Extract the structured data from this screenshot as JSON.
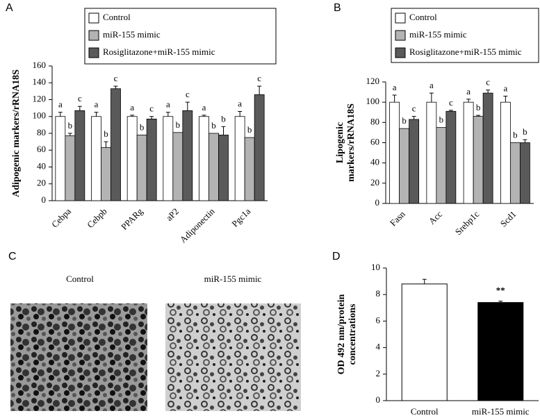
{
  "chart_data": [
    {
      "type": "grouped_bar",
      "panel": "A",
      "ylabel": [
        "Adipogenic markers/rRNA18S"
      ],
      "categories": [
        "Cebpa",
        "Cebpb",
        "PPARg",
        "aP2",
        "Adiponectin",
        "Pgc1a"
      ],
      "series": [
        {
          "name": "Control",
          "color": "#ffffff",
          "values": [
            100,
            100,
            100,
            100,
            100,
            100
          ],
          "errors": [
            5,
            5,
            1.5,
            5,
            1.5,
            6
          ],
          "letters": [
            "a",
            "a",
            "a",
            "a",
            "a",
            "a"
          ]
        },
        {
          "name": "miR-155 mimic",
          "color": "#b3b3b3",
          "values": [
            77,
            63,
            78,
            81,
            80,
            75
          ],
          "errors": [
            3,
            7,
            null,
            null,
            null,
            null
          ],
          "letters": [
            "b",
            "b",
            "b",
            "b",
            "b",
            "b"
          ]
        },
        {
          "name": "Rosiglitazone+miR-155 mimic",
          "color": "#5a5a5a",
          "values": [
            107,
            133,
            97,
            107,
            78,
            126
          ],
          "errors": [
            5,
            3,
            3,
            10,
            10,
            10
          ],
          "letters": [
            "c",
            "c",
            "c",
            "c",
            "b",
            "c"
          ]
        }
      ],
      "ylim": [
        0,
        160
      ],
      "yticks": [
        0,
        20,
        40,
        60,
        80,
        100,
        120,
        140,
        160
      ],
      "legend": true
    },
    {
      "type": "grouped_bar",
      "panel": "B",
      "ylabel": [
        "Lipogenic",
        "markers/rRNA18S"
      ],
      "categories": [
        "Fasn",
        "Acc",
        "Srebp1c",
        "Scd1"
      ],
      "series": [
        {
          "name": "Control",
          "color": "#ffffff",
          "values": [
            100,
            100,
            100,
            100
          ],
          "errors": [
            7,
            9,
            3,
            6
          ],
          "letters": [
            "a",
            "a",
            "a",
            "a"
          ]
        },
        {
          "name": "miR-155 mimic",
          "color": "#b3b3b3",
          "values": [
            74,
            75,
            86,
            60
          ],
          "errors": [
            null,
            null,
            1,
            null
          ],
          "letters": [
            "b",
            "b",
            "b",
            "b"
          ]
        },
        {
          "name": "Rosiglitazone+miR-155 mimic",
          "color": "#5a5a5a",
          "values": [
            83,
            91,
            109,
            60
          ],
          "errors": [
            3,
            1,
            3,
            3
          ],
          "letters": [
            "c",
            "c",
            "c",
            "b"
          ]
        }
      ],
      "ylim": [
        0,
        120
      ],
      "yticks": [
        0,
        20,
        40,
        60,
        80,
        100,
        120
      ],
      "legend": true
    },
    {
      "type": "bar",
      "panel": "D",
      "ylabel": [
        "OD 492 nm/protein",
        "concentrations"
      ],
      "categories": [
        "Control",
        "miR-155 mimic"
      ],
      "values": [
        8.8,
        7.4
      ],
      "errors": [
        0.35,
        0.1
      ],
      "colors": [
        "#ffffff",
        "#000000"
      ],
      "significance": [
        null,
        "**"
      ],
      "ylim": [
        0,
        10
      ],
      "yticks": [
        0,
        2,
        4,
        6,
        8,
        10
      ],
      "legend": false
    }
  ],
  "panel_c": {
    "panel": "C",
    "captions": [
      "Control",
      "miR-155 mimic"
    ]
  }
}
